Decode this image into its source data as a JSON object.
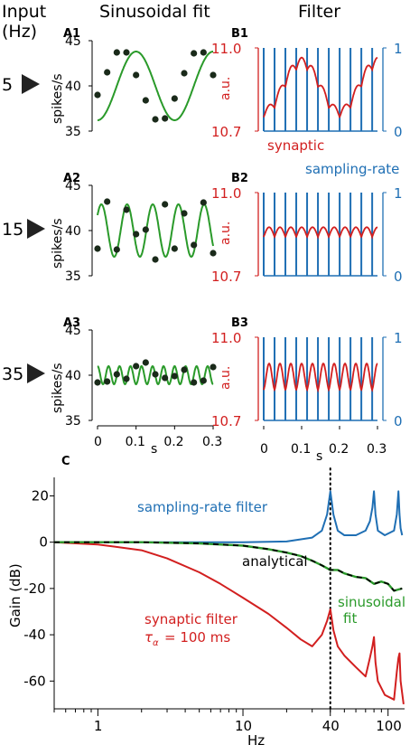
{
  "header": {
    "input_label": "Input",
    "input_unit": "(Hz)",
    "col_a_title": "Sinusoidal fit",
    "col_b_title": "Filter"
  },
  "colors": {
    "synaptic": "#d21f1f",
    "sampling": "#1f6fb4",
    "fit": "#2a9a2a",
    "analytical": "#000000",
    "points": "#1a2a1a"
  },
  "chart_data": [
    {
      "id": "A",
      "type": "line+scatter",
      "panel_labels": [
        "A1",
        "A2",
        "A3"
      ],
      "input_frequencies_hz": [
        5,
        15,
        35
      ],
      "ylabel": "spikes/s",
      "xlabel": "s",
      "xlim": [
        0,
        0.3
      ],
      "ylim": [
        35,
        45
      ],
      "yticks": [
        35,
        40,
        45
      ],
      "xticks": [
        "0",
        "0.1",
        "0.2",
        "0.3"
      ],
      "fit_series": [
        {
          "freq_hz": 5,
          "mean": 40,
          "amplitude": 3.8,
          "phase_cycles": 0.5
        },
        {
          "freq_hz": 15,
          "mean": 40,
          "amplitude": 2.9,
          "phase_cycles": 0.15
        },
        {
          "freq_hz": 35,
          "mean": 40,
          "amplitude": 1.0,
          "phase_cycles": 0.0
        }
      ],
      "samples": [
        {
          "x": [
            0,
            0.025,
            0.05,
            0.075,
            0.1,
            0.125,
            0.15,
            0.175,
            0.2,
            0.225,
            0.25,
            0.275,
            0.3
          ],
          "y": [
            39.0,
            41.5,
            43.7,
            43.7,
            41.2,
            38.4,
            36.3,
            36.4,
            38.6,
            41.4,
            43.6,
            43.7,
            41.2
          ]
        },
        {
          "x": [
            0,
            0.025,
            0.05,
            0.075,
            0.1,
            0.125,
            0.15,
            0.175,
            0.2,
            0.225,
            0.25,
            0.275,
            0.3
          ],
          "y": [
            38.0,
            43.2,
            37.9,
            42.3,
            39.6,
            40.1,
            36.8,
            42.9,
            38.0,
            41.9,
            38.4,
            43.1,
            37.5
          ]
        },
        {
          "x": [
            0,
            0.025,
            0.05,
            0.075,
            0.1,
            0.125,
            0.15,
            0.175,
            0.2,
            0.225,
            0.25,
            0.275,
            0.3
          ],
          "y": [
            39.2,
            39.3,
            40.1,
            39.6,
            41.0,
            41.4,
            40.1,
            39.7,
            39.9,
            40.6,
            39.2,
            39.4,
            40.9
          ]
        }
      ]
    },
    {
      "id": "B",
      "type": "line",
      "panel_labels": [
        "B1",
        "B2",
        "B3"
      ],
      "left_ylabel": "a.u.",
      "left_ylim": [
        10.7,
        11.0
      ],
      "left_yticks": [
        "11.0",
        "10.7"
      ],
      "right_ylim": [
        0,
        1
      ],
      "right_yticks": [
        "1",
        "0"
      ],
      "xlabel": "s",
      "xlim": [
        0,
        0.3
      ],
      "xticks": [
        "0",
        "0.1",
        "0.2",
        "0.3"
      ],
      "sampling_period_s": 0.0286,
      "legend_labels": {
        "synaptic": "synaptic",
        "sampling": "sampling-rate"
      },
      "synaptic_envelope_mid": [
        10.86,
        10.86,
        10.86
      ],
      "synaptic_envelope_amp": [
        0.09,
        0.0,
        0.03
      ]
    },
    {
      "id": "C",
      "type": "line",
      "panel_label": "C",
      "xlabel": "Hz",
      "ylabel": "Gain (dB)",
      "xscale": "log",
      "xlim": [
        0.5,
        130
      ],
      "ylim": [
        -72,
        28
      ],
      "xticks": [
        "1",
        "10",
        "40",
        "100"
      ],
      "yticks": [
        "20",
        "0",
        "-20",
        "-40",
        "-60"
      ],
      "vline_hz": 40,
      "series": [
        {
          "name": "sampling-rate filter",
          "x": [
            0.5,
            1,
            2,
            5,
            10,
            20,
            30,
            35,
            38,
            40,
            42,
            45,
            50,
            60,
            70,
            75,
            78,
            80,
            82,
            85,
            95,
            110,
            115,
            118,
            120,
            122,
            125
          ],
          "y": [
            0,
            0,
            0,
            0,
            0,
            0.3,
            2,
            5,
            12,
            22,
            12,
            5,
            3,
            3,
            5,
            9,
            15,
            22,
            12,
            5,
            3,
            5,
            12,
            22,
            12,
            6,
            3
          ]
        },
        {
          "name": "analytical",
          "x": [
            0.5,
            1,
            2,
            5,
            10,
            15,
            20,
            25,
            30,
            35,
            40,
            45,
            50,
            60,
            70,
            80,
            90,
            100,
            110,
            125
          ],
          "y": [
            0,
            0,
            0,
            -0.5,
            -1.5,
            -3,
            -4.5,
            -6,
            -8,
            -10,
            -12,
            -12,
            -13.5,
            -15,
            -15.5,
            -18,
            -17,
            -18,
            -21,
            -20
          ]
        },
        {
          "name": "sinusoidal fit",
          "x": [
            0.5,
            1,
            2,
            5,
            10,
            15,
            20,
            25,
            30,
            35,
            40,
            45,
            50,
            60,
            70,
            80,
            90,
            100,
            110,
            125
          ],
          "y": [
            0,
            0,
            0,
            -0.5,
            -1.5,
            -3,
            -4.5,
            -6,
            -8,
            -10,
            -12,
            -12,
            -13.5,
            -15,
            -15.5,
            -18,
            -17,
            -18,
            -21,
            -20
          ]
        },
        {
          "name": "synaptic filter",
          "x": [
            0.5,
            1,
            2,
            3,
            5,
            7,
            10,
            15,
            20,
            25,
            30,
            35,
            38,
            40,
            42,
            45,
            50,
            60,
            70,
            75,
            78,
            80,
            82,
            85,
            95,
            110,
            115,
            118,
            120,
            122,
            128
          ],
          "y": [
            0,
            -1,
            -3.5,
            -7,
            -13,
            -18,
            -24,
            -31,
            -37,
            -42,
            -45,
            -40,
            -34,
            -29,
            -38,
            -45,
            -49,
            -54,
            -58,
            -50,
            -45,
            -41,
            -52,
            -60,
            -66,
            -68,
            -56,
            -50,
            -48,
            -60,
            -70
          ]
        }
      ],
      "annotations": {
        "sampling": "sampling-rate filter",
        "analytical": "analytical",
        "sinusoidal": "sinusoidal",
        "sinusoidal2": "fit",
        "synaptic": "synaptic filter",
        "tau": "= 100 ms",
        "tau_symbol": "τ",
        "tau_sub": "α"
      }
    }
  ]
}
